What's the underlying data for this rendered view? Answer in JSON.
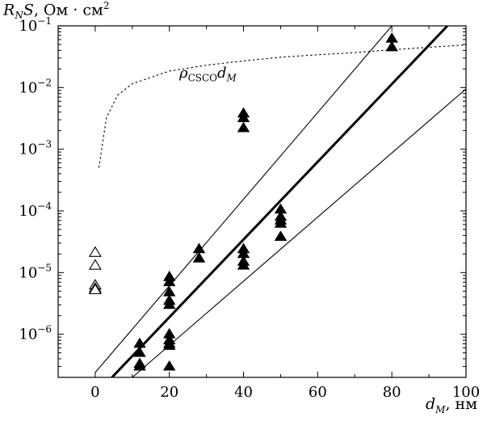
{
  "chart_data": {
    "type": "scatter",
    "yscale": "log",
    "xlim": [
      -10,
      100
    ],
    "ylim": [
      2e-07,
      0.1
    ],
    "xticks": [
      0,
      20,
      40,
      60,
      80,
      100
    ],
    "xtick_labels": [
      "0",
      "20",
      "40",
      "60",
      "80",
      "100"
    ],
    "yticks": [
      1e-06,
      1e-05,
      0.0001,
      0.001,
      0.01,
      0.1
    ],
    "ytick_labels": [
      {
        "base": "10",
        "exp": "−6"
      },
      {
        "base": "10",
        "exp": "−5"
      },
      {
        "base": "10",
        "exp": "−4"
      },
      {
        "base": "10",
        "exp": "−3"
      },
      {
        "base": "10",
        "exp": "−2"
      },
      {
        "base": "10",
        "exp": "−1"
      }
    ],
    "ylabel": {
      "main": "R",
      "sub": "N",
      "main2": "S",
      "unit": ", Ом · см",
      "unit_sup": "2"
    },
    "xlabel": {
      "main": "d",
      "sub": "M",
      "unit": ", нм"
    },
    "annotation": {
      "rho": "ρ",
      "sub": "CSCO",
      "d": "d",
      "dsub": "M"
    },
    "grid": false,
    "series": [
      {
        "marker": "filled-triangle",
        "x": [
          12,
          12,
          12,
          12,
          20,
          20,
          20,
          20,
          20,
          20,
          20,
          20,
          20,
          20,
          28,
          28,
          40,
          40,
          40,
          40,
          40,
          40,
          40,
          50,
          50,
          50,
          50,
          50,
          80,
          80
        ],
        "y": [
          7e-07,
          5e-07,
          3.3e-07,
          3e-07,
          8.5e-06,
          7e-06,
          4.8e-06,
          3.5e-06,
          3e-06,
          1e-06,
          8e-07,
          7e-07,
          6.5e-07,
          3e-07,
          2.4e-05,
          1.7e-05,
          0.0038,
          0.0032,
          0.0022,
          2.4e-05,
          2e-05,
          1.5e-05,
          1.3e-05,
          0.000105,
          8e-05,
          7e-05,
          6.2e-05,
          3.8e-05,
          0.062,
          0.045
        ]
      },
      {
        "marker": "open-triangle",
        "x": [
          0,
          0,
          0,
          0,
          0
        ],
        "y": [
          2.1e-05,
          1.3e-05,
          6.2e-06,
          5.5e-06,
          5.2e-06
        ]
      }
    ],
    "lines": [
      {
        "style": "thin-solid",
        "x": [
          0,
          80
        ],
        "y": [
          2.4e-07,
          0.1
        ]
      },
      {
        "style": "thick-solid",
        "x": [
          4.5,
          95
        ],
        "y": [
          2e-07,
          0.1
        ]
      },
      {
        "style": "thin-solid",
        "x": [
          10,
          100
        ],
        "y": [
          2e-07,
          0.0095
        ]
      },
      {
        "style": "dotted",
        "x": [
          1,
          3,
          6,
          10,
          20,
          30,
          40,
          50,
          60,
          70,
          80,
          90,
          100
        ],
        "y": [
          0.0005,
          0.0032,
          0.0075,
          0.0115,
          0.0185,
          0.023,
          0.027,
          0.031,
          0.034,
          0.037,
          0.041,
          0.045,
          0.049
        ]
      }
    ]
  }
}
